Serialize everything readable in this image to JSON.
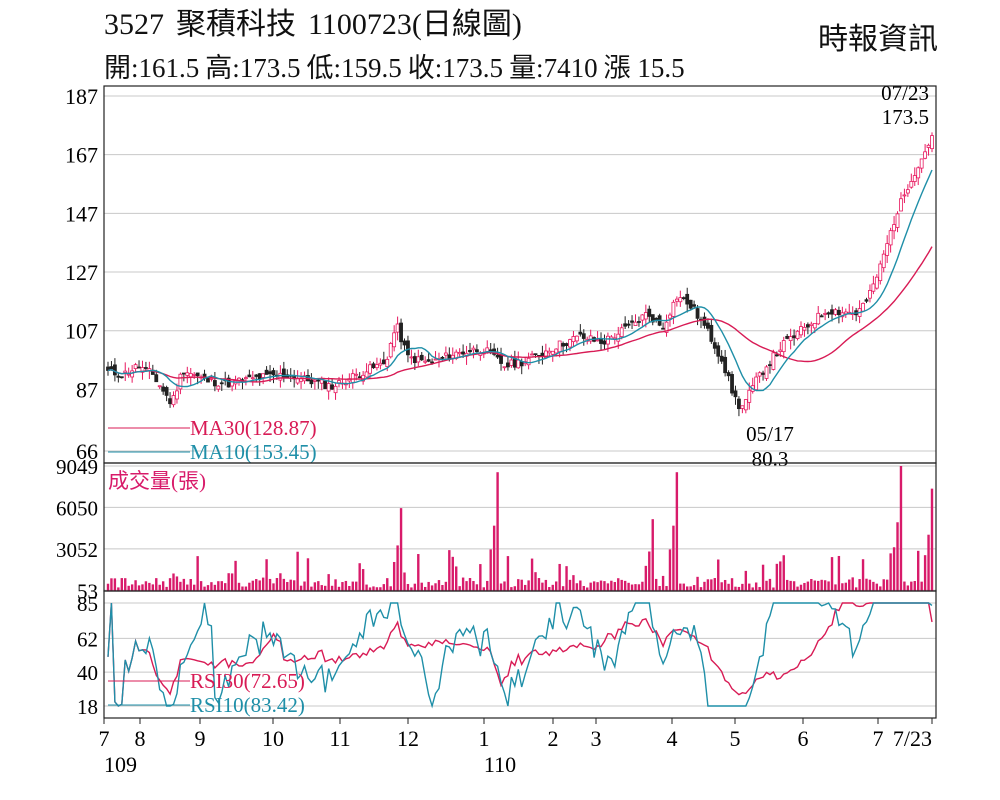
{
  "header": {
    "code": "3527",
    "name": "聚積科技",
    "date_title": "1100723(日線圖)",
    "source": "時報資訊",
    "quote": [
      "開:161.5",
      "高:173.5",
      "低:159.5",
      "收:173.5",
      "量:7410",
      "漲 15.5"
    ]
  },
  "colors": {
    "up": "#e8185f",
    "down": "#222222",
    "ma30": "#d81b55",
    "ma10": "#1f8fa8",
    "volume": "#d81b6a",
    "grid": "#c8c8c8"
  },
  "chart_data": [
    {
      "type": "candlestick",
      "title": "3527 聚積科技 1100723(日線圖)",
      "ylim": [
        66,
        187
      ],
      "yticks": [
        66,
        87,
        107,
        127,
        147,
        167,
        187
      ],
      "series": [
        {
          "name": "MA30",
          "label": "MA30(128.87)"
        },
        {
          "name": "MA10",
          "label": "MA10(153.45)"
        }
      ],
      "annotations": [
        {
          "label": [
            "07/23",
            "173.5"
          ],
          "x_month": 7.7,
          "y": 173.5
        },
        {
          "label": [
            "05/17",
            "80.3"
          ],
          "x_month": 5.45,
          "y": 80.3
        }
      ],
      "approx_path": [
        [
          0,
          93
        ],
        [
          0.2,
          92
        ],
        [
          0.4,
          95
        ],
        [
          0.6,
          92
        ],
        [
          0.85,
          82
        ],
        [
          1.0,
          94
        ],
        [
          1.3,
          90
        ],
        [
          1.6,
          89
        ],
        [
          2.0,
          91
        ],
        [
          2.4,
          92
        ],
        [
          2.7,
          90
        ],
        [
          3.0,
          88
        ],
        [
          3.4,
          93
        ],
        [
          3.7,
          96
        ],
        [
          3.85,
          109
        ],
        [
          4.0,
          98
        ],
        [
          4.3,
          96
        ],
        [
          4.6,
          99
        ],
        [
          5.0,
          101
        ],
        [
          5.3,
          95
        ],
        [
          5.6,
          97
        ],
        [
          6.0,
          102
        ],
        [
          6.3,
          105
        ],
        [
          6.6,
          103
        ],
        [
          7.0,
          109
        ],
        [
          7.2,
          113
        ],
        [
          7.4,
          108
        ],
        [
          7.6,
          119
        ],
        [
          7.8,
          115
        ],
        [
          8.0,
          107
        ],
        [
          8.2,
          97
        ],
        [
          8.35,
          85
        ],
        [
          8.45,
          80.3
        ],
        [
          8.7,
          92
        ],
        [
          9.0,
          102
        ],
        [
          9.3,
          108
        ],
        [
          9.6,
          114
        ],
        [
          10.0,
          113
        ],
        [
          10.15,
          118
        ],
        [
          10.3,
          128
        ],
        [
          10.5,
          145
        ],
        [
          10.7,
          158
        ],
        [
          10.85,
          165
        ],
        [
          11.0,
          173.5
        ]
      ]
    },
    {
      "type": "bar",
      "title": "成交量(張)",
      "yticks": [
        53,
        3052,
        6050,
        9049
      ],
      "ylim": [
        0,
        9049
      ],
      "approx_peaks": [
        {
          "x_month": 3.92,
          "value": 6000
        },
        {
          "x_month": 5.2,
          "value": 8600
        },
        {
          "x_month": 7.25,
          "value": 5200
        },
        {
          "x_month": 7.6,
          "value": 8600
        },
        {
          "x_month": 10.6,
          "value": 9049
        },
        {
          "x_month": 11.0,
          "value": 7410
        }
      ]
    },
    {
      "type": "line",
      "ylim": [
        18,
        85
      ],
      "yticks": [
        18,
        40,
        62,
        85
      ],
      "series": [
        {
          "name": "RSI30",
          "label": "RSI30(72.65)"
        },
        {
          "name": "RSI10",
          "label": "RSI10(83.42)"
        }
      ]
    }
  ],
  "x_axis": {
    "months": [
      "7",
      "8",
      "9",
      "10",
      "11",
      "12",
      "1",
      "2",
      "3",
      "4",
      "5",
      "6",
      "7",
      "7/23"
    ],
    "years": [
      "109",
      "110"
    ]
  }
}
